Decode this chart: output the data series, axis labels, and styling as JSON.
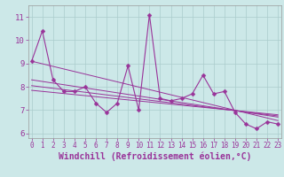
{
  "xlabel": "Windchill (Refroidissement éolien,°C)",
  "x_values": [
    0,
    1,
    2,
    3,
    4,
    5,
    6,
    7,
    8,
    9,
    10,
    11,
    12,
    13,
    14,
    15,
    16,
    17,
    18,
    19,
    20,
    21,
    22,
    23
  ],
  "y_main": [
    9.1,
    10.4,
    8.3,
    7.8,
    7.8,
    8.0,
    7.3,
    6.9,
    7.3,
    8.9,
    7.0,
    11.1,
    7.5,
    7.4,
    7.5,
    7.7,
    8.5,
    7.7,
    7.8,
    6.9,
    6.4,
    6.2,
    6.5,
    6.4
  ],
  "trend_lines": [
    {
      "x0": 0,
      "y0": 9.1,
      "x1": 23,
      "y1": 6.55
    },
    {
      "x0": 0,
      "y0": 8.3,
      "x1": 23,
      "y1": 6.7
    },
    {
      "x0": 0,
      "y0": 8.05,
      "x1": 23,
      "y1": 6.75
    },
    {
      "x0": 0,
      "y0": 7.85,
      "x1": 23,
      "y1": 6.8
    }
  ],
  "ylim": [
    5.8,
    11.5
  ],
  "xlim": [
    -0.3,
    23.3
  ],
  "yticks": [
    6,
    7,
    8,
    9,
    10,
    11
  ],
  "xticks": [
    0,
    1,
    2,
    3,
    4,
    5,
    6,
    7,
    8,
    9,
    10,
    11,
    12,
    13,
    14,
    15,
    16,
    17,
    18,
    19,
    20,
    21,
    22,
    23
  ],
  "bg_color": "#cce8e8",
  "grid_color": "#aacccc",
  "line_color": "#993399",
  "tick_color": "#993399",
  "marker": "D",
  "marker_size": 2.5,
  "line_width": 0.8,
  "trend_lw": 0.7,
  "font_size_ticks_x": 5.5,
  "font_size_ticks_y": 6.5,
  "font_size_label": 7.0
}
